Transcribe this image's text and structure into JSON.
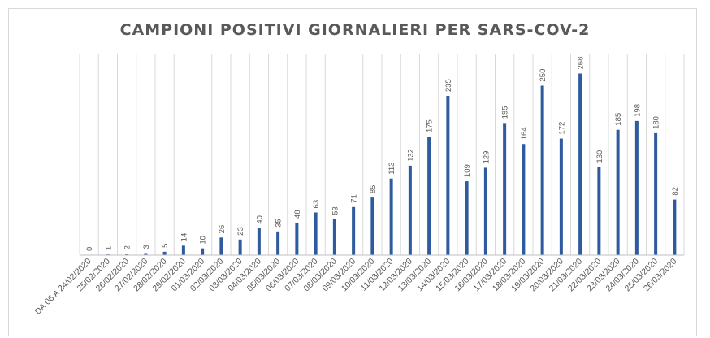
{
  "chart_data": {
    "type": "bar",
    "title": "CAMPIONI POSITIVI GIORNALIERI PER SARS-COV-2",
    "xlabel": "",
    "ylabel": "",
    "categories": [
      "DA 06 A 24/02/2020",
      "25/02/2020",
      "26/02/2020",
      "27/02/2020",
      "28/02/2020",
      "29/02/2020",
      "01/03/2020",
      "02/03/2020",
      "03/03/2020",
      "04/03/2020",
      "05/03/2020",
      "06/03/2020",
      "07/03/2020",
      "08/03/2020",
      "09/03/2020",
      "10/03/2020",
      "11/03/2020",
      "12/03/2020",
      "13/03/2020",
      "14/03/2020",
      "15/03/2020",
      "16/03/2020",
      "17/03/2020",
      "18/03/2020",
      "19/03/2020",
      "20/03/2020",
      "21/03/2020",
      "22/03/2020",
      "23/03/2020",
      "24/03/2020",
      "25/03/2020",
      "26/03/2020"
    ],
    "values": [
      0,
      1,
      2,
      3,
      5,
      14,
      10,
      26,
      23,
      40,
      35,
      48,
      63,
      53,
      71,
      85,
      113,
      132,
      175,
      235,
      109,
      129,
      195,
      164,
      250,
      172,
      268,
      130,
      185,
      198,
      180,
      82
    ],
    "ylim": [
      0,
      280
    ],
    "grid": "vertical",
    "bar_color": "#2e5b9e",
    "grid_color": "#d9d9d9"
  }
}
